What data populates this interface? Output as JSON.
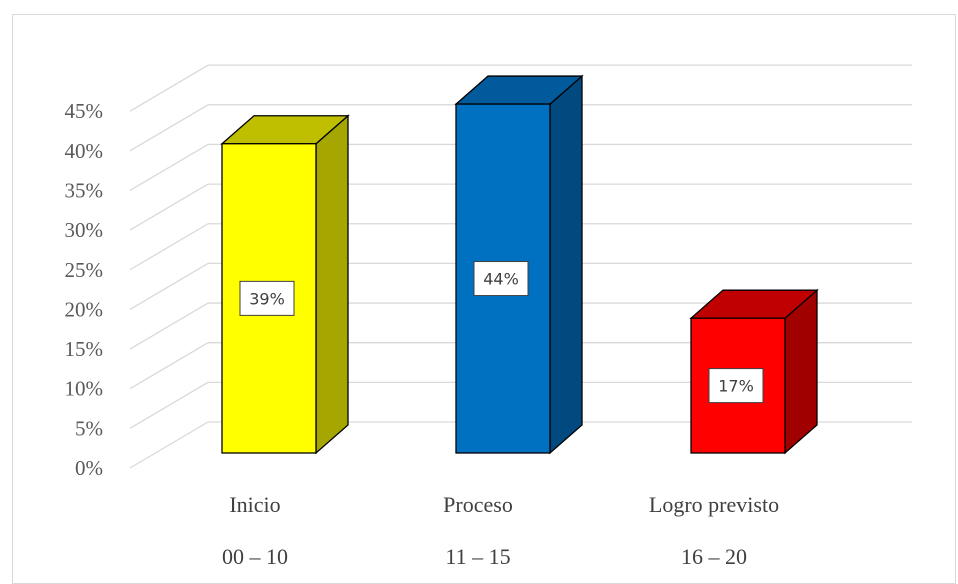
{
  "chart_data": {
    "type": "bar",
    "style": "3d-column",
    "categories": [
      "Inicio",
      "Proceso",
      "Logro previsto"
    ],
    "category_ranges": [
      "00 – 10",
      "11 – 15",
      "16 – 20"
    ],
    "values": [
      39,
      44,
      17
    ],
    "data_labels": [
      "39%",
      "44%",
      "17%"
    ],
    "ylim": [
      0,
      45
    ],
    "y_ticks": [
      0,
      5,
      10,
      15,
      20,
      25,
      30,
      35,
      40,
      45
    ],
    "y_tick_labels": [
      "0%",
      "5%",
      "10%",
      "15%",
      "20%",
      "25%",
      "30%",
      "35%",
      "40%",
      "45%"
    ],
    "grid": true,
    "legend": "none",
    "colors": [
      {
        "front": "#ffff00",
        "side": "#a6a600",
        "top": "#bfbf00"
      },
      {
        "front": "#0070c0",
        "side": "#004a80",
        "top": "#005a9c"
      },
      {
        "front": "#ff0000",
        "side": "#a00000",
        "top": "#c00000"
      }
    ]
  }
}
